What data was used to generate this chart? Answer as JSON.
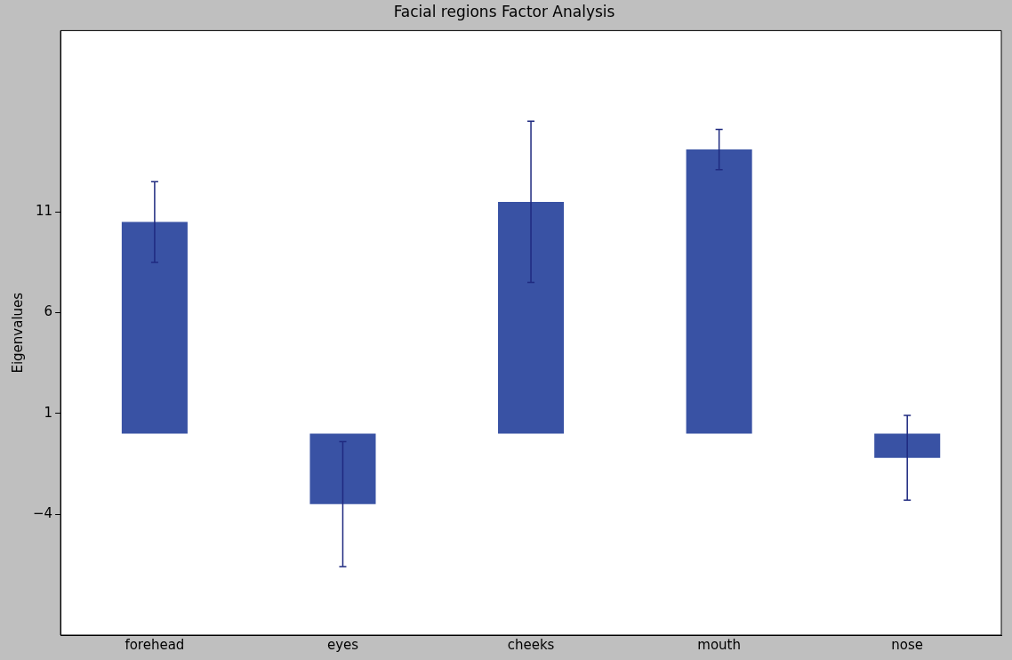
{
  "chart_data": {
    "type": "bar",
    "title": "Facial regions Factor Analysis",
    "ylabel": "Eigenvalues",
    "categories": [
      "forehead",
      "eyes",
      "cheeks",
      "mouth",
      "nose"
    ],
    "values": [
      10.5,
      -3.5,
      11.5,
      14.1,
      -1.2
    ],
    "errors": [
      2.0,
      3.1,
      4.0,
      1.0,
      2.1
    ],
    "color": "#3952a4",
    "ylim": [
      -10,
      20
    ],
    "yticks": [
      -4,
      1,
      6,
      11
    ],
    "grid": false,
    "legend": false
  }
}
